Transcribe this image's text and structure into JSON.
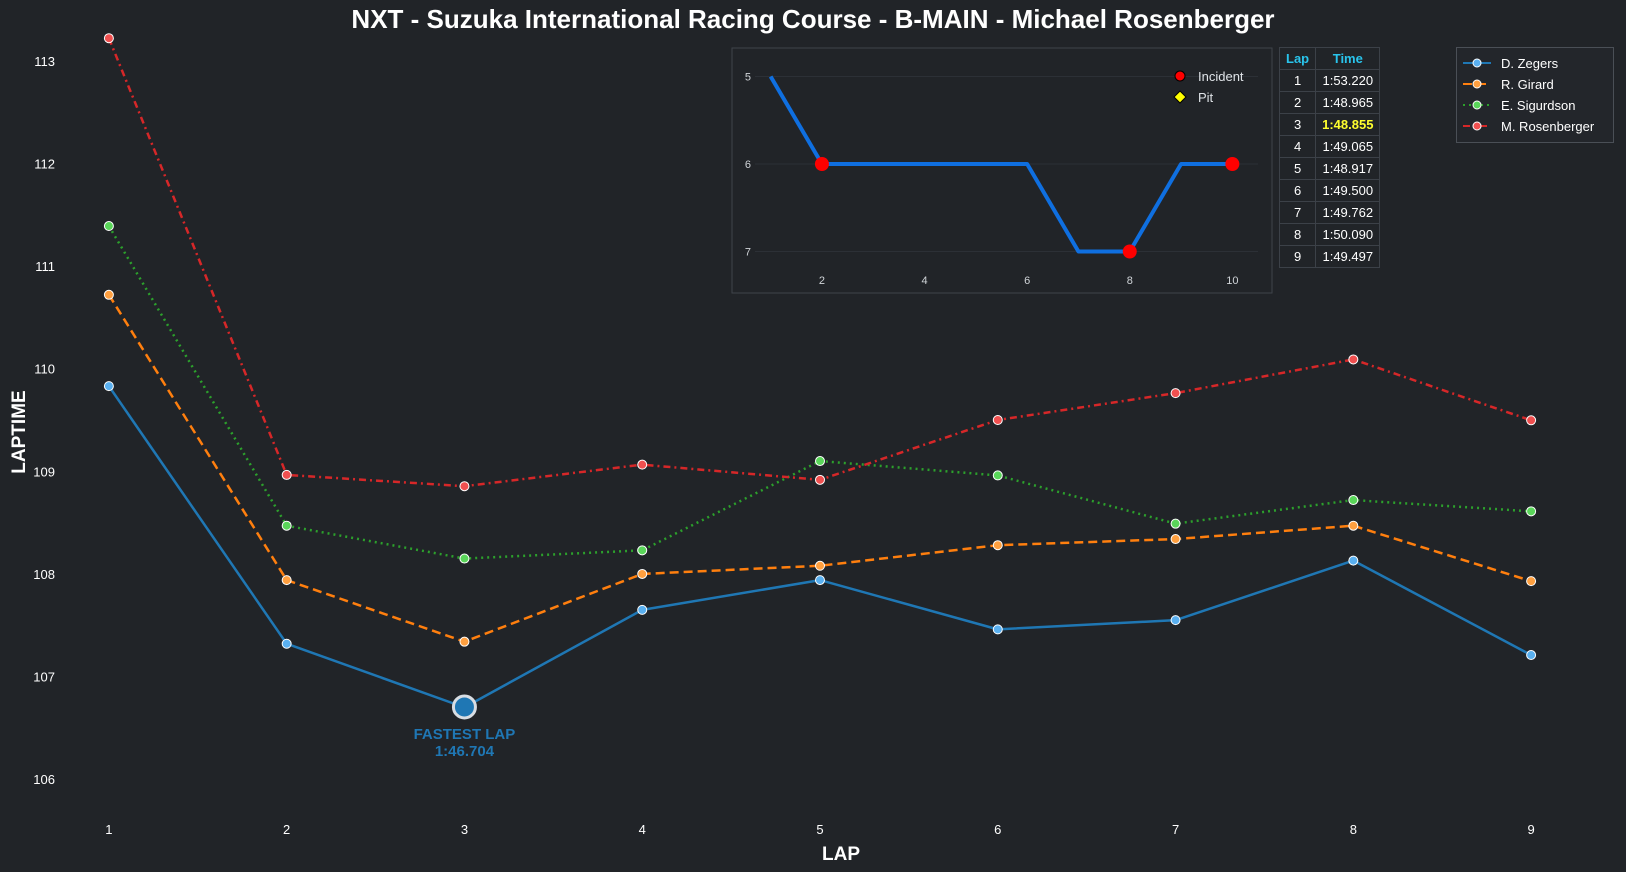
{
  "title": "NXT - Suzuka International Racing Course - B-MAIN - Michael Rosenberger",
  "chart_data": [
    {
      "type": "line",
      "xlabel": "LAP",
      "ylabel": "LAPTIME",
      "x": [
        1,
        2,
        3,
        4,
        5,
        6,
        7,
        8,
        9
      ],
      "xlim": [
        0.5,
        9.5
      ],
      "ylim": [
        105.7,
        113.3
      ],
      "yticks": [
        106,
        107,
        108,
        109,
        110,
        111,
        112,
        113
      ],
      "grid": false,
      "legend_position": "top-right",
      "series": [
        {
          "name": "D. Zegers",
          "color": "#1f77b4",
          "marker_fill": "#5ab0f0",
          "dash": "solid",
          "values": [
            109.83,
            107.32,
            106.7,
            107.65,
            107.94,
            107.46,
            107.55,
            108.13,
            107.21
          ]
        },
        {
          "name": "R. Girard",
          "color": "#ff7f0e",
          "marker_fill": "#ffa040",
          "dash": "dashed",
          "values": [
            110.72,
            107.94,
            107.34,
            108.0,
            108.08,
            108.28,
            108.34,
            108.47,
            107.93
          ]
        },
        {
          "name": "E. Sigurdson",
          "color": "#2ca02c",
          "marker_fill": "#5ad65a",
          "dash": "dotted",
          "values": [
            111.39,
            108.47,
            108.15,
            108.23,
            109.1,
            108.96,
            108.49,
            108.72,
            108.61
          ]
        },
        {
          "name": "M. Rosenberger",
          "color": "#d62728",
          "marker_fill": "#f05050",
          "dash": "dashdot",
          "values": [
            113.22,
            108.965,
            108.855,
            109.065,
            108.917,
            109.5,
            109.762,
            110.09,
            109.497
          ]
        }
      ],
      "annotation": {
        "line1": "FASTEST LAP",
        "line2": "1:46.704",
        "x": 3,
        "y": 106.704,
        "color": "#1f77b4"
      }
    },
    {
      "type": "line",
      "x": [
        1,
        2,
        3,
        4,
        5,
        6,
        7,
        8,
        9,
        10
      ],
      "values": [
        5,
        6,
        6,
        6,
        6,
        6,
        7,
        7,
        6,
        6
      ],
      "xticks": [
        2,
        4,
        6,
        8,
        10
      ],
      "yticks": [
        5,
        6,
        7
      ],
      "xlim": [
        0.5,
        10.5
      ],
      "ylim": [
        7.2,
        4.8
      ],
      "y_inverted": true,
      "color": "#0f6fe0",
      "incidents": [
        {
          "x": 2,
          "y": 6
        },
        {
          "x": 8,
          "y": 7
        },
        {
          "x": 10,
          "y": 6
        }
      ],
      "legend": [
        {
          "label": "Incident",
          "marker": "circle",
          "color": "#ff0000"
        },
        {
          "label": "Pit",
          "marker": "diamond",
          "color": "#ffff00"
        }
      ]
    }
  ],
  "lap_table": {
    "headers": [
      "Lap",
      "Time"
    ],
    "highlight_row": 2,
    "rows": [
      [
        "1",
        "1:53.220"
      ],
      [
        "2",
        "1:48.965"
      ],
      [
        "3",
        "1:48.855"
      ],
      [
        "4",
        "1:49.065"
      ],
      [
        "5",
        "1:48.917"
      ],
      [
        "6",
        "1:49.500"
      ],
      [
        "7",
        "1:49.762"
      ],
      [
        "8",
        "1:50.090"
      ],
      [
        "9",
        "1:49.497"
      ]
    ]
  }
}
